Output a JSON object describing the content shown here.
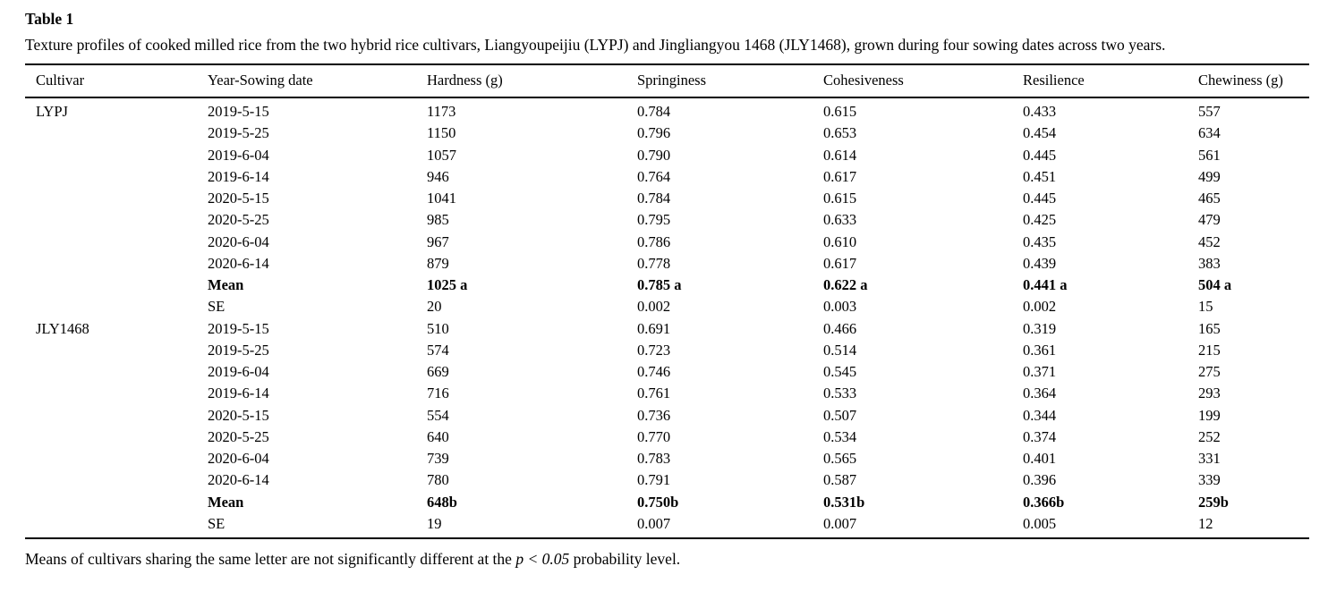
{
  "table": {
    "label": "Table 1",
    "caption": "Texture profiles of cooked milled rice from the two hybrid rice cultivars, Liangyoupeijiu (LYPJ) and Jingliangyou 1468 (JLY1468), grown during four sowing dates across two years.",
    "columns": [
      "Cultivar",
      "Year-Sowing date",
      "Hardness (g)",
      "Springiness",
      "Cohesiveness",
      "Resilience",
      "Chewiness (g)"
    ],
    "groups": [
      {
        "cultivar": "LYPJ",
        "rows": [
          {
            "label": "2019-5-15",
            "bold": false,
            "values": [
              "1173",
              "0.784",
              "0.615",
              "0.433",
              "557"
            ]
          },
          {
            "label": "2019-5-25",
            "bold": false,
            "values": [
              "1150",
              "0.796",
              "0.653",
              "0.454",
              "634"
            ]
          },
          {
            "label": "2019-6-04",
            "bold": false,
            "values": [
              "1057",
              "0.790",
              "0.614",
              "0.445",
              "561"
            ]
          },
          {
            "label": "2019-6-14",
            "bold": false,
            "values": [
              "946",
              "0.764",
              "0.617",
              "0.451",
              "499"
            ]
          },
          {
            "label": "2020-5-15",
            "bold": false,
            "values": [
              "1041",
              "0.784",
              "0.615",
              "0.445",
              "465"
            ]
          },
          {
            "label": "2020-5-25",
            "bold": false,
            "values": [
              "985",
              "0.795",
              "0.633",
              "0.425",
              "479"
            ]
          },
          {
            "label": "2020-6-04",
            "bold": false,
            "values": [
              "967",
              "0.786",
              "0.610",
              "0.435",
              "452"
            ]
          },
          {
            "label": "2020-6-14",
            "bold": false,
            "values": [
              "879",
              "0.778",
              "0.617",
              "0.439",
              "383"
            ]
          },
          {
            "label": "Mean",
            "bold": true,
            "values": [
              "1025 a",
              "0.785 a",
              "0.622 a",
              "0.441 a",
              "504 a"
            ]
          },
          {
            "label": "SE",
            "bold": false,
            "values": [
              "20",
              "0.002",
              "0.003",
              "0.002",
              "15"
            ]
          }
        ]
      },
      {
        "cultivar": "JLY1468",
        "rows": [
          {
            "label": "2019-5-15",
            "bold": false,
            "values": [
              "510",
              "0.691",
              "0.466",
              "0.319",
              "165"
            ]
          },
          {
            "label": "2019-5-25",
            "bold": false,
            "values": [
              "574",
              "0.723",
              "0.514",
              "0.361",
              "215"
            ]
          },
          {
            "label": "2019-6-04",
            "bold": false,
            "values": [
              "669",
              "0.746",
              "0.545",
              "0.371",
              "275"
            ]
          },
          {
            "label": "2019-6-14",
            "bold": false,
            "values": [
              "716",
              "0.761",
              "0.533",
              "0.364",
              "293"
            ]
          },
          {
            "label": "2020-5-15",
            "bold": false,
            "values": [
              "554",
              "0.736",
              "0.507",
              "0.344",
              "199"
            ]
          },
          {
            "label": "2020-5-25",
            "bold": false,
            "values": [
              "640",
              "0.770",
              "0.534",
              "0.374",
              "252"
            ]
          },
          {
            "label": "2020-6-04",
            "bold": false,
            "values": [
              "739",
              "0.783",
              "0.565",
              "0.401",
              "331"
            ]
          },
          {
            "label": "2020-6-14",
            "bold": false,
            "values": [
              "780",
              "0.791",
              "0.587",
              "0.396",
              "339"
            ]
          },
          {
            "label": "Mean",
            "bold": true,
            "values": [
              "648b",
              "0.750b",
              "0.531b",
              "0.366b",
              "259b"
            ]
          },
          {
            "label": "SE",
            "bold": false,
            "values": [
              "19",
              "0.007",
              "0.007",
              "0.005",
              "12"
            ]
          }
        ]
      }
    ],
    "footnote": {
      "before": "Means of cultivars sharing the same letter are not significantly different at the ",
      "italic": "p < 0.05",
      "after": " probability level."
    }
  }
}
